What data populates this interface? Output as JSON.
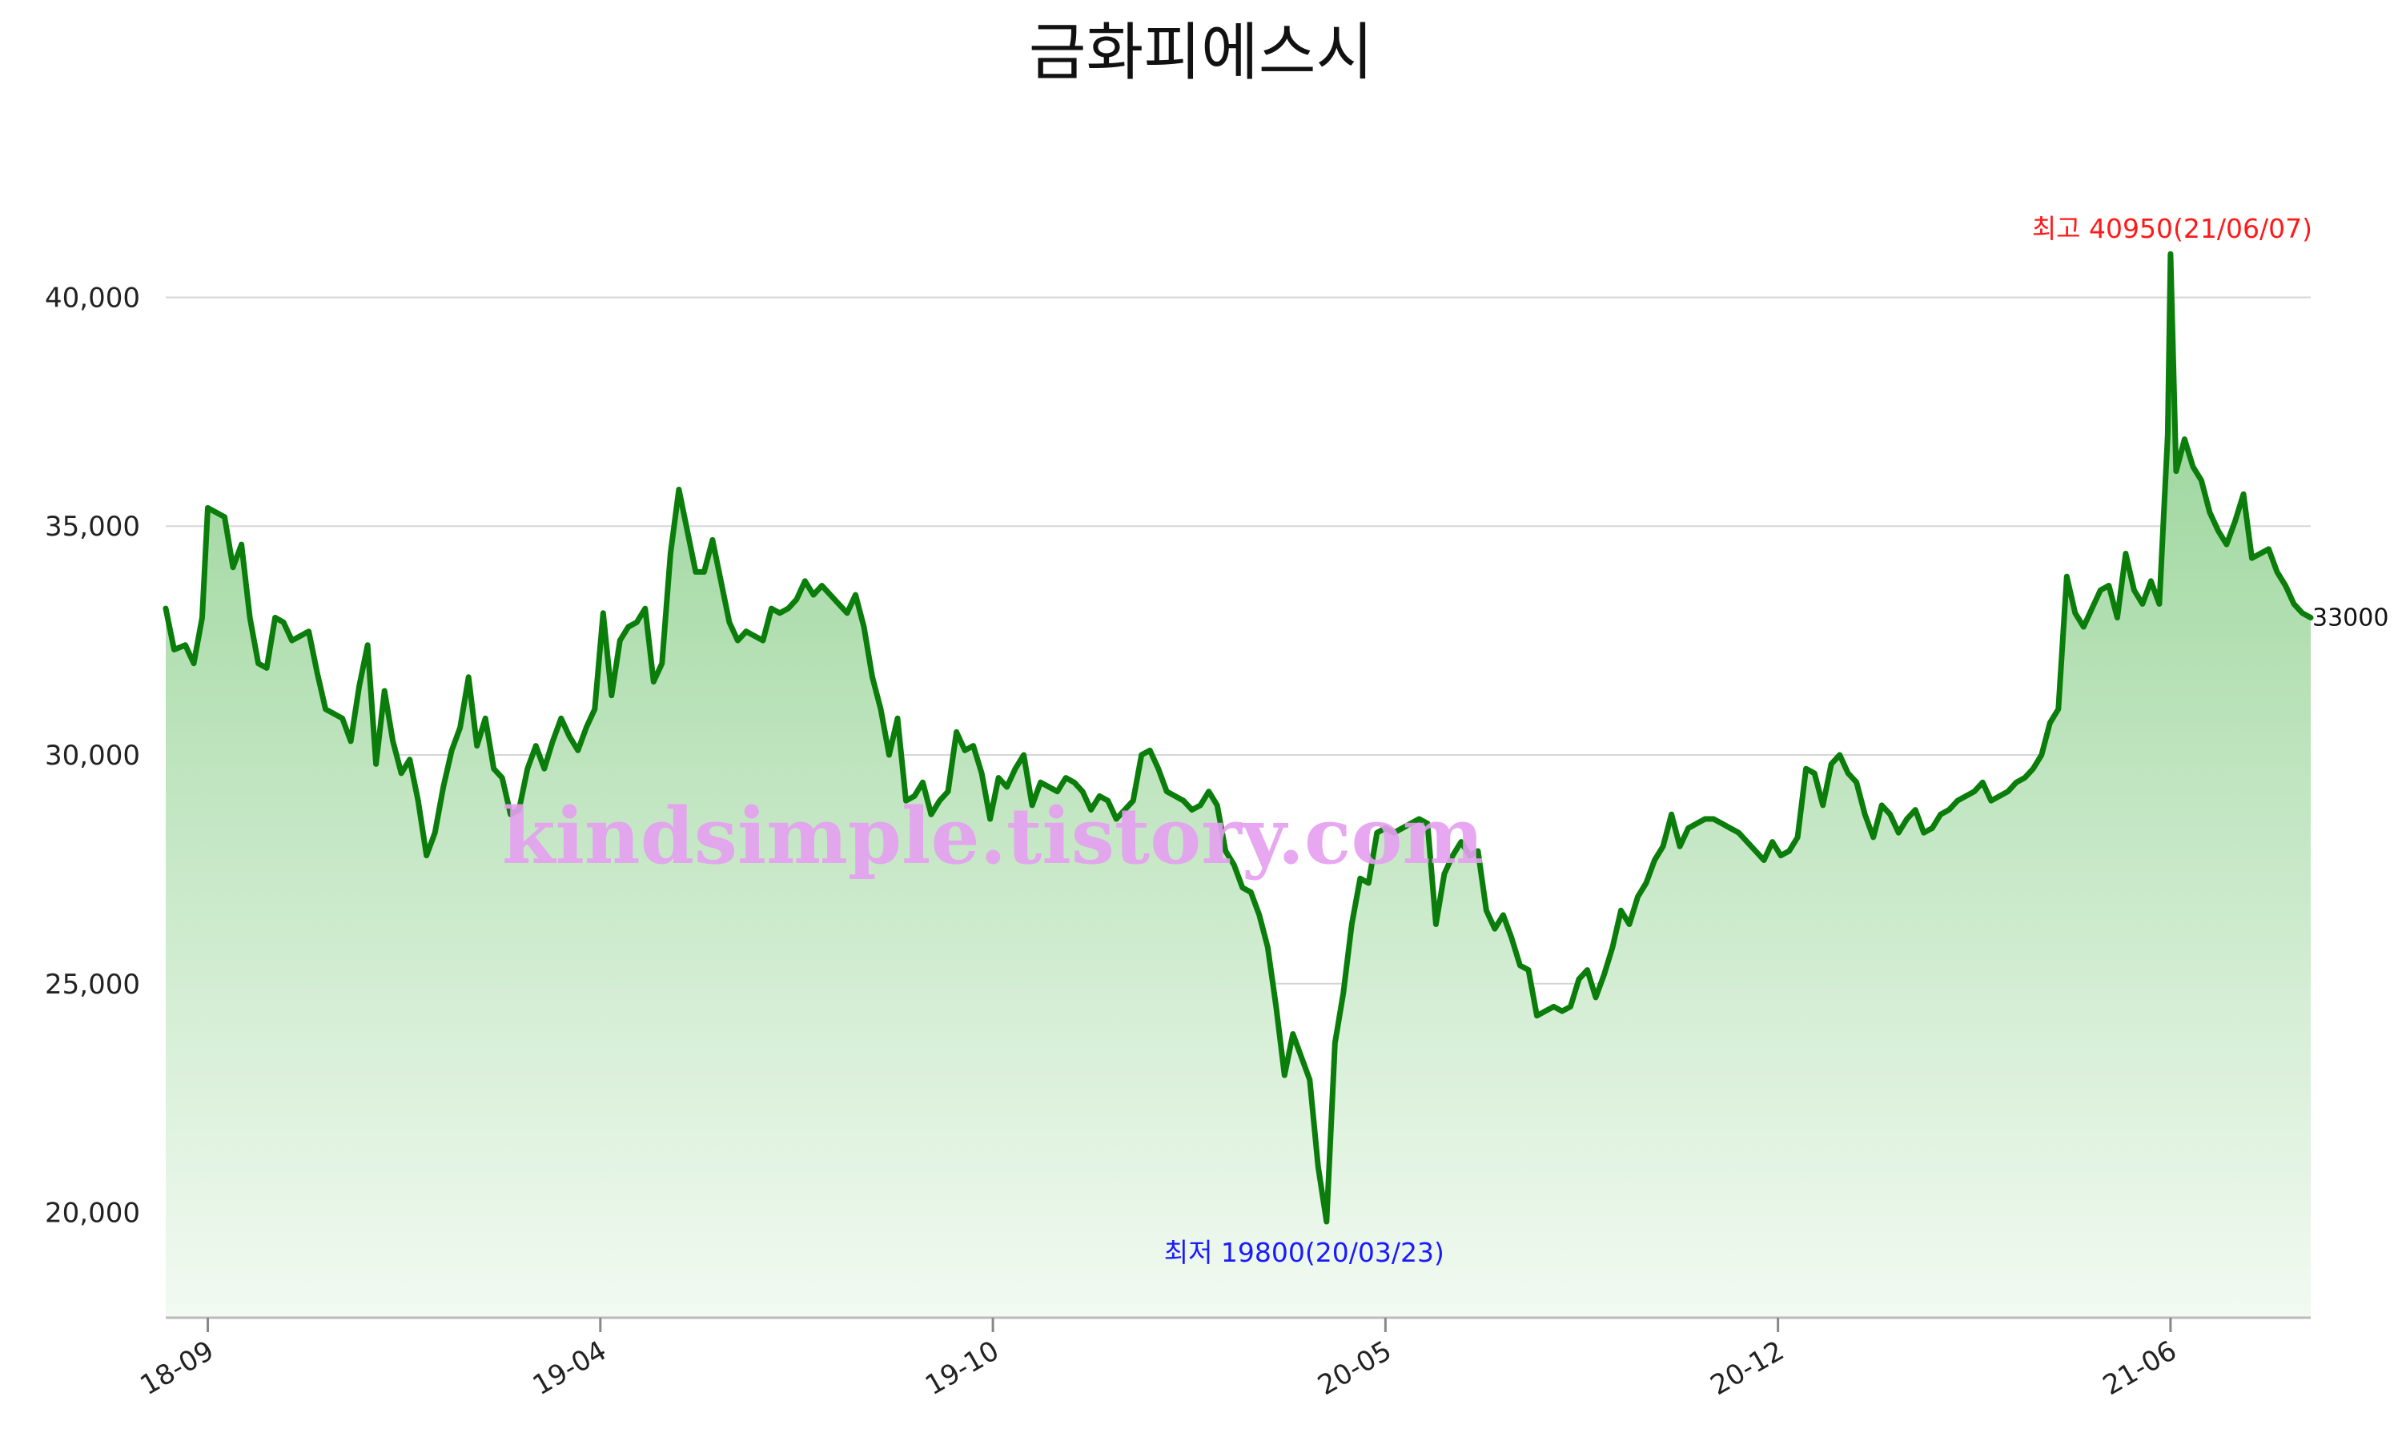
{
  "chart_data": {
    "type": "area",
    "title": "금화피에스시",
    "xlabel": "",
    "ylabel": "",
    "ylim": [
      17700,
      43000
    ],
    "yticks": [
      20000,
      25000,
      30000,
      35000,
      40000
    ],
    "ytick_labels": [
      "20,000",
      "25,000",
      "30,000",
      "35,000",
      "40,000"
    ],
    "xticks": [
      {
        "label": "18-09",
        "index": 15
      },
      {
        "label": "19-04",
        "index": 155
      },
      {
        "label": "19-10",
        "index": 295
      },
      {
        "label": "20-05",
        "index": 435
      },
      {
        "label": "20-12",
        "index": 575
      },
      {
        "label": "21-06",
        "index": 715
      }
    ],
    "grid": true,
    "legend": "none",
    "series": [
      {
        "name": "",
        "color": "#0a7d0a",
        "fill_top": "#8fd08f",
        "fill_bottom": "#f2faf2",
        "points": [
          [
            0,
            33200
          ],
          [
            3,
            32300
          ],
          [
            7,
            32400
          ],
          [
            10,
            32000
          ],
          [
            13,
            33000
          ],
          [
            15,
            35400
          ],
          [
            18,
            35300
          ],
          [
            21,
            35200
          ],
          [
            24,
            34100
          ],
          [
            27,
            34600
          ],
          [
            30,
            33000
          ],
          [
            33,
            32000
          ],
          [
            36,
            31900
          ],
          [
            39,
            33000
          ],
          [
            42,
            32900
          ],
          [
            45,
            32500
          ],
          [
            48,
            32600
          ],
          [
            51,
            32700
          ],
          [
            54,
            31800
          ],
          [
            57,
            31000
          ],
          [
            60,
            30900
          ],
          [
            63,
            30800
          ],
          [
            66,
            30300
          ],
          [
            69,
            31500
          ],
          [
            72,
            32400
          ],
          [
            75,
            29800
          ],
          [
            78,
            31400
          ],
          [
            81,
            30300
          ],
          [
            84,
            29600
          ],
          [
            87,
            29900
          ],
          [
            90,
            29000
          ],
          [
            93,
            27800
          ],
          [
            96,
            28300
          ],
          [
            99,
            29300
          ],
          [
            102,
            30100
          ],
          [
            105,
            30600
          ],
          [
            108,
            31700
          ],
          [
            111,
            30200
          ],
          [
            114,
            30800
          ],
          [
            117,
            29700
          ],
          [
            120,
            29500
          ],
          [
            123,
            28700
          ],
          [
            126,
            28800
          ],
          [
            129,
            29700
          ],
          [
            132,
            30200
          ],
          [
            135,
            29700
          ],
          [
            138,
            30300
          ],
          [
            141,
            30800
          ],
          [
            144,
            30400
          ],
          [
            147,
            30100
          ],
          [
            150,
            30600
          ],
          [
            153,
            31000
          ],
          [
            156,
            33100
          ],
          [
            159,
            31300
          ],
          [
            162,
            32500
          ],
          [
            165,
            32800
          ],
          [
            168,
            32900
          ],
          [
            171,
            33200
          ],
          [
            174,
            31600
          ],
          [
            177,
            32000
          ],
          [
            180,
            34400
          ],
          [
            183,
            35800
          ],
          [
            186,
            34900
          ],
          [
            189,
            34000
          ],
          [
            192,
            34000
          ],
          [
            195,
            34700
          ],
          [
            198,
            33800
          ],
          [
            201,
            32900
          ],
          [
            204,
            32500
          ],
          [
            207,
            32700
          ],
          [
            210,
            32600
          ],
          [
            213,
            32500
          ],
          [
            216,
            33200
          ],
          [
            219,
            33100
          ],
          [
            222,
            33200
          ],
          [
            225,
            33400
          ],
          [
            228,
            33800
          ],
          [
            231,
            33500
          ],
          [
            234,
            33700
          ],
          [
            237,
            33500
          ],
          [
            240,
            33300
          ],
          [
            243,
            33100
          ],
          [
            246,
            33500
          ],
          [
            249,
            32800
          ],
          [
            252,
            31700
          ],
          [
            255,
            31000
          ],
          [
            258,
            30000
          ],
          [
            261,
            30800
          ],
          [
            264,
            29000
          ],
          [
            267,
            29100
          ],
          [
            270,
            29400
          ],
          [
            273,
            28700
          ],
          [
            276,
            29000
          ],
          [
            279,
            29200
          ],
          [
            282,
            30500
          ],
          [
            285,
            30100
          ],
          [
            288,
            30200
          ],
          [
            291,
            29600
          ],
          [
            294,
            28600
          ],
          [
            297,
            29500
          ],
          [
            300,
            29300
          ],
          [
            303,
            29700
          ],
          [
            306,
            30000
          ],
          [
            309,
            28900
          ],
          [
            312,
            29400
          ],
          [
            315,
            29300
          ],
          [
            318,
            29200
          ],
          [
            321,
            29500
          ],
          [
            324,
            29400
          ],
          [
            327,
            29200
          ],
          [
            330,
            28800
          ],
          [
            333,
            29100
          ],
          [
            336,
            29000
          ],
          [
            339,
            28600
          ],
          [
            342,
            28800
          ],
          [
            345,
            29000
          ],
          [
            348,
            30000
          ],
          [
            351,
            30100
          ],
          [
            354,
            29700
          ],
          [
            357,
            29200
          ],
          [
            360,
            29100
          ],
          [
            363,
            29000
          ],
          [
            366,
            28800
          ],
          [
            369,
            28900
          ],
          [
            372,
            29200
          ],
          [
            375,
            28900
          ],
          [
            378,
            27900
          ],
          [
            381,
            27600
          ],
          [
            384,
            27100
          ],
          [
            387,
            27000
          ],
          [
            390,
            26500
          ],
          [
            393,
            25800
          ],
          [
            396,
            24500
          ],
          [
            399,
            23000
          ],
          [
            402,
            23900
          ],
          [
            405,
            23400
          ],
          [
            408,
            22900
          ],
          [
            411,
            21000
          ],
          [
            414,
            19800
          ],
          [
            417,
            23700
          ],
          [
            420,
            24800
          ],
          [
            423,
            26300
          ],
          [
            426,
            27300
          ],
          [
            429,
            27200
          ],
          [
            432,
            28300
          ],
          [
            435,
            28400
          ],
          [
            438,
            28300
          ],
          [
            441,
            28400
          ],
          [
            444,
            28500
          ],
          [
            447,
            28600
          ],
          [
            450,
            28500
          ],
          [
            453,
            26300
          ],
          [
            456,
            27400
          ],
          [
            459,
            27800
          ],
          [
            462,
            28100
          ],
          [
            465,
            27800
          ],
          [
            468,
            27900
          ],
          [
            471,
            26600
          ],
          [
            474,
            26200
          ],
          [
            477,
            26500
          ],
          [
            480,
            26000
          ],
          [
            483,
            25400
          ],
          [
            486,
            25300
          ],
          [
            489,
            24300
          ],
          [
            492,
            24400
          ],
          [
            495,
            24500
          ],
          [
            498,
            24400
          ],
          [
            501,
            24500
          ],
          [
            504,
            25100
          ],
          [
            507,
            25300
          ],
          [
            510,
            24700
          ],
          [
            513,
            25200
          ],
          [
            516,
            25800
          ],
          [
            519,
            26600
          ],
          [
            522,
            26300
          ],
          [
            525,
            26900
          ],
          [
            528,
            27200
          ],
          [
            531,
            27700
          ],
          [
            534,
            28000
          ],
          [
            537,
            28700
          ],
          [
            540,
            28000
          ],
          [
            543,
            28400
          ],
          [
            546,
            28500
          ],
          [
            549,
            28600
          ],
          [
            552,
            28600
          ],
          [
            555,
            28500
          ],
          [
            558,
            28400
          ],
          [
            561,
            28300
          ],
          [
            564,
            28100
          ],
          [
            567,
            27900
          ],
          [
            570,
            27700
          ],
          [
            573,
            28100
          ],
          [
            576,
            27800
          ],
          [
            579,
            27900
          ],
          [
            582,
            28200
          ],
          [
            585,
            29700
          ],
          [
            588,
            29600
          ],
          [
            591,
            28900
          ],
          [
            594,
            29800
          ],
          [
            597,
            30000
          ],
          [
            600,
            29600
          ],
          [
            603,
            29400
          ],
          [
            606,
            28700
          ],
          [
            609,
            28200
          ],
          [
            612,
            28900
          ],
          [
            615,
            28700
          ],
          [
            618,
            28300
          ],
          [
            621,
            28600
          ],
          [
            624,
            28800
          ],
          [
            627,
            28300
          ],
          [
            630,
            28400
          ],
          [
            633,
            28700
          ],
          [
            636,
            28800
          ],
          [
            639,
            29000
          ],
          [
            642,
            29100
          ],
          [
            645,
            29200
          ],
          [
            648,
            29400
          ],
          [
            651,
            29000
          ],
          [
            654,
            29100
          ],
          [
            657,
            29200
          ],
          [
            660,
            29400
          ],
          [
            663,
            29500
          ],
          [
            666,
            29700
          ],
          [
            669,
            30000
          ],
          [
            672,
            30700
          ],
          [
            675,
            31000
          ],
          [
            678,
            33900
          ],
          [
            681,
            33100
          ],
          [
            684,
            32800
          ],
          [
            687,
            33200
          ],
          [
            690,
            33600
          ],
          [
            693,
            33700
          ],
          [
            696,
            33000
          ],
          [
            699,
            34400
          ],
          [
            702,
            33600
          ],
          [
            705,
            33300
          ],
          [
            708,
            33800
          ],
          [
            711,
            33300
          ],
          [
            714,
            37000
          ],
          [
            715,
            40950
          ],
          [
            717,
            36200
          ],
          [
            720,
            36900
          ],
          [
            723,
            36300
          ],
          [
            726,
            36000
          ],
          [
            729,
            35300
          ],
          [
            732,
            34900
          ],
          [
            735,
            34600
          ],
          [
            738,
            35100
          ],
          [
            741,
            35700
          ],
          [
            744,
            34300
          ],
          [
            747,
            34400
          ],
          [
            750,
            34500
          ],
          [
            753,
            34000
          ],
          [
            756,
            33700
          ],
          [
            759,
            33300
          ],
          [
            762,
            33100
          ],
          [
            765,
            33000
          ]
        ]
      }
    ],
    "annotations": {
      "high_text": "최고 40950(21/06/07)",
      "high_value": 40950,
      "high_index": 715,
      "low_text": "최저 19800(20/03/23)",
      "low_value": 19800,
      "low_index": 414,
      "last_text": "33000",
      "last_value": 33000
    },
    "watermark": "kindsimple.tistory.com"
  }
}
